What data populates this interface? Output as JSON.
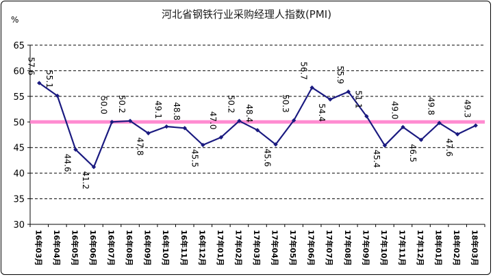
{
  "chart_data": {
    "type": "line",
    "title": "河北省钢铁行业采购经理人指数(PMI)",
    "ylabel": "%",
    "ylim": [
      30,
      65
    ],
    "yticks": [
      30,
      35,
      40,
      45,
      50,
      55,
      60,
      65
    ],
    "reference_line": {
      "value": 50,
      "color": "#ff8cd1"
    },
    "grid": true,
    "line_color": "#1a1a80",
    "categories": [
      "16年03月",
      "16年04月",
      "16年05月",
      "16年06月",
      "16年07月",
      "16年08月",
      "16年09月",
      "16年10月",
      "16年11月",
      "16年12月",
      "17年01月",
      "17年02月",
      "17年03月",
      "17年04月",
      "17年05月",
      "17年06月",
      "17年07月",
      "17年08月",
      "17年09月",
      "17年10月",
      "17年11月",
      "17年12月",
      "18年01月",
      "18年02月",
      "18年03月"
    ],
    "values": [
      57.6,
      55.1,
      44.6,
      41.2,
      50.0,
      50.2,
      47.8,
      49.1,
      48.8,
      45.5,
      47.0,
      50.2,
      48.4,
      45.6,
      50.3,
      56.7,
      54.4,
      55.9,
      51.1,
      45.4,
      49.0,
      46.5,
      49.8,
      47.6,
      49.3
    ],
    "data_labels": [
      "57.6",
      "55.1",
      "44.6",
      "41.2",
      "50.0",
      "50.2",
      "47.8",
      "49.1",
      "48.8",
      "45.5",
      "47.0",
      "50.2",
      "48.4",
      "45.6",
      "50.3",
      "56.7",
      "54.4",
      "55.9",
      "51.1",
      "45.4",
      "49.0",
      "46.5",
      "49.8",
      "47.6",
      "49.3"
    ]
  }
}
